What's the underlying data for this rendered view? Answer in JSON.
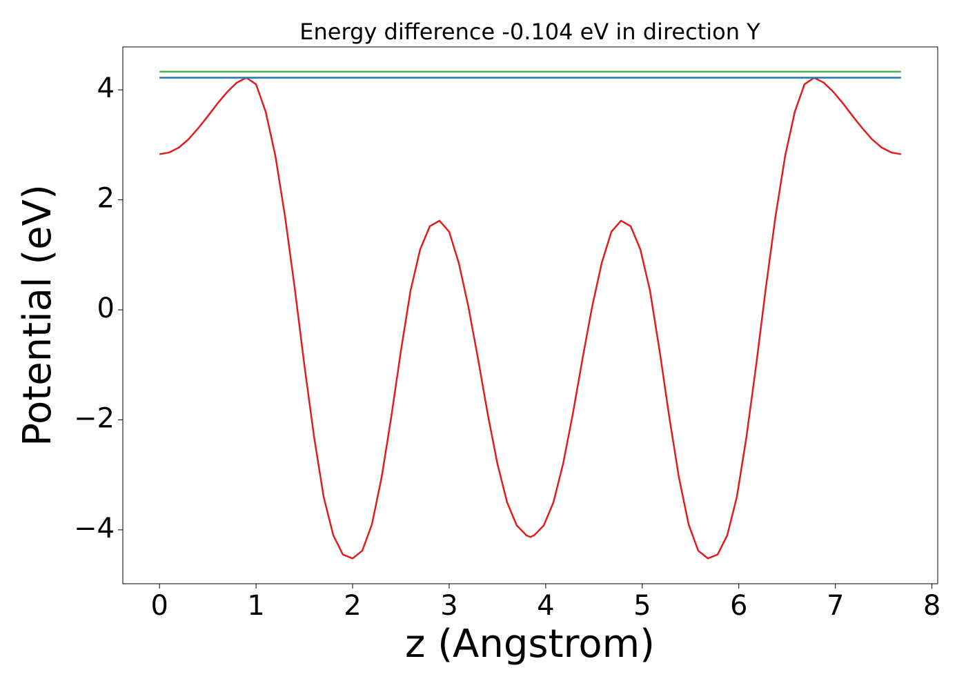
{
  "chart_data": {
    "type": "line",
    "title": "Energy difference -0.104 eV in direction Y",
    "xlabel": "z (Angstrom)",
    "ylabel": "Potential (eV)",
    "xlim": [
      -0.38,
      8.06
    ],
    "ylim": [
      -4.98,
      4.78
    ],
    "xticks": [
      0,
      1,
      2,
      3,
      4,
      5,
      6,
      7,
      8
    ],
    "yticks": [
      {
        "value": -4,
        "label": "−4"
      },
      {
        "value": -2,
        "label": "−2"
      },
      0,
      2,
      4
    ],
    "series": [
      {
        "color": "#e41a1c",
        "x": [
          0,
          0.1,
          0.2,
          0.3,
          0.4,
          0.5,
          0.6,
          0.7,
          0.8,
          0.9,
          1.0,
          1.1,
          1.2,
          1.3,
          1.4,
          1.5,
          1.6,
          1.7,
          1.8,
          1.9,
          2.0,
          2.1,
          2.2,
          2.3,
          2.4,
          2.5,
          2.6,
          2.7,
          2.8,
          2.9,
          3.0,
          3.1,
          3.2,
          3.3,
          3.4,
          3.5,
          3.6,
          3.7,
          3.8,
          3.84,
          3.88,
          3.98,
          4.08,
          4.18,
          4.28,
          4.38,
          4.48,
          4.58,
          4.68,
          4.78,
          4.88,
          4.98,
          5.08,
          5.18,
          5.28,
          5.38,
          5.48,
          5.58,
          5.68,
          5.78,
          5.88,
          5.98,
          6.08,
          6.18,
          6.28,
          6.38,
          6.48,
          6.58,
          6.68,
          6.78,
          6.88,
          6.98,
          7.08,
          7.18,
          7.28,
          7.38,
          7.48,
          7.58,
          7.68
        ],
        "values": [
          2.83,
          2.86,
          2.95,
          3.1,
          3.3,
          3.52,
          3.75,
          3.96,
          4.13,
          4.22,
          4.1,
          3.6,
          2.8,
          1.7,
          0.4,
          -1.0,
          -2.3,
          -3.4,
          -4.1,
          -4.45,
          -4.52,
          -4.38,
          -3.9,
          -3.05,
          -1.95,
          -0.75,
          0.35,
          1.1,
          1.52,
          1.62,
          1.42,
          0.85,
          0.05,
          -0.9,
          -1.9,
          -2.8,
          -3.5,
          -3.92,
          -4.1,
          -4.13,
          -4.1,
          -3.92,
          -3.5,
          -2.8,
          -1.9,
          -0.9,
          0.05,
          0.85,
          1.42,
          1.62,
          1.52,
          1.1,
          0.35,
          -0.75,
          -1.95,
          -3.05,
          -3.9,
          -4.38,
          -4.52,
          -4.45,
          -4.1,
          -3.4,
          -2.3,
          -1.0,
          0.4,
          1.7,
          2.8,
          3.6,
          4.1,
          4.22,
          4.13,
          3.96,
          3.75,
          3.52,
          3.3,
          3.1,
          2.95,
          2.86,
          2.83
        ]
      },
      {
        "color": "#1f77b4",
        "x": [
          0,
          7.68
        ],
        "values": [
          4.22,
          4.22
        ]
      },
      {
        "color": "#4daf4a",
        "x": [
          0,
          7.68
        ],
        "values": [
          4.33,
          4.33
        ]
      }
    ]
  }
}
